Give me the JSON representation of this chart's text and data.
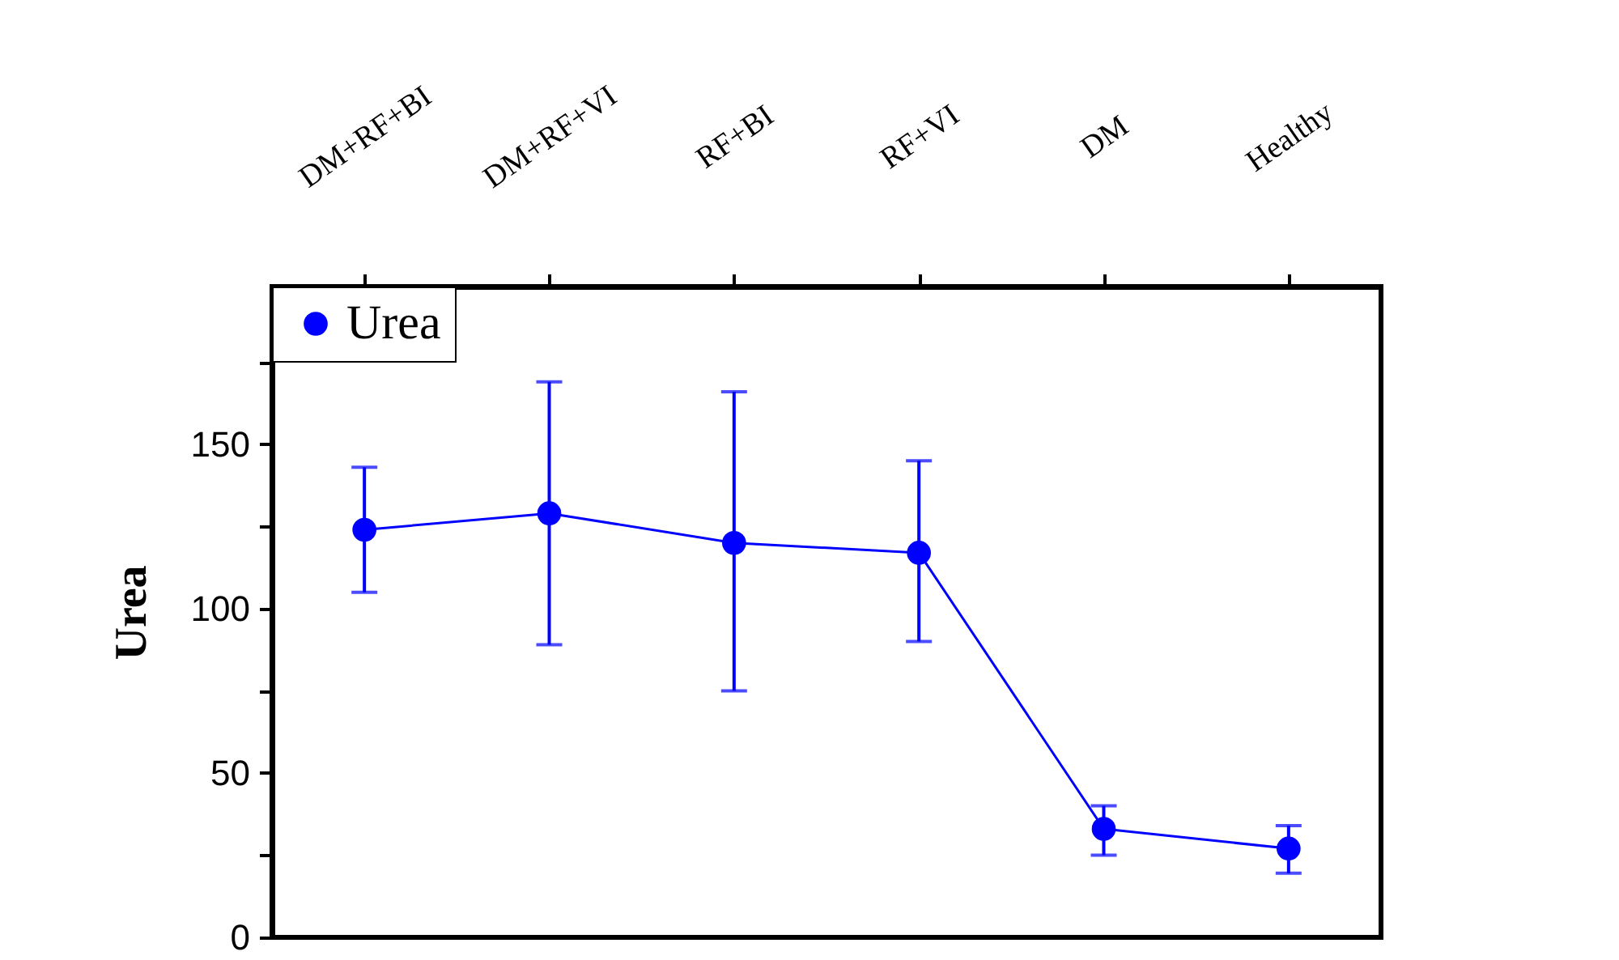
{
  "chart_data": {
    "type": "line",
    "ylabel": "Urea",
    "categories": [
      "DM+RF+BI",
      "DM+RF+VI",
      "RF+BI",
      "RF+VI",
      "DM",
      "Healthy"
    ],
    "series": [
      {
        "name": "Urea",
        "color": "#0000ff",
        "values": [
          124,
          129,
          120,
          117,
          33,
          27
        ],
        "errors": [
          [
            105,
            143
          ],
          [
            89,
            169
          ],
          [
            75,
            166
          ],
          [
            90,
            145
          ],
          [
            25,
            40
          ],
          [
            19.5,
            34
          ]
        ]
      }
    ],
    "ylim": [
      0,
      198
    ],
    "yticks": [
      0,
      {
        "value": 25,
        "label": null
      },
      50,
      {
        "value": 75,
        "label": null
      },
      100,
      {
        "value": 125,
        "label": null
      },
      150,
      {
        "value": 175,
        "label": null
      }
    ],
    "marker": "circle",
    "line_style": "solid",
    "legend": "top left",
    "grid": false
  }
}
